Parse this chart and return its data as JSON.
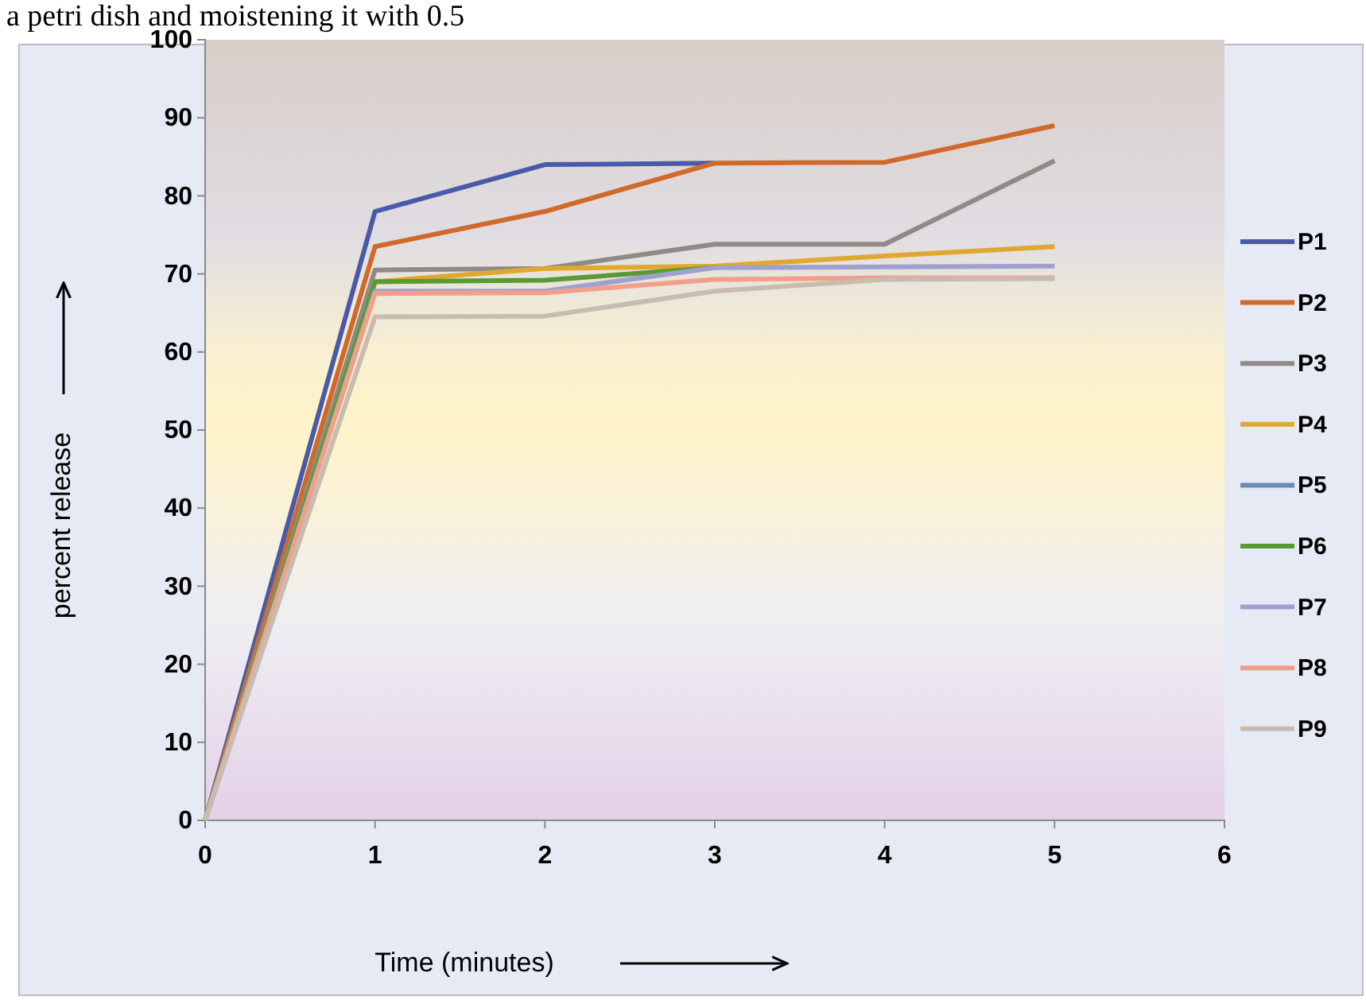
{
  "chart_data": {
    "type": "line",
    "xlabel": "Time (minutes)",
    "ylabel": "percent release",
    "annotations": [
      "a petri dish and moistening it with 0.5"
    ],
    "x": [
      0,
      1,
      2,
      3,
      4,
      5
    ],
    "xlim": [
      0,
      6
    ],
    "xticks": [
      0,
      1,
      2,
      3,
      4,
      5,
      6
    ],
    "ylim": [
      0,
      100
    ],
    "yticks": [
      0,
      10,
      20,
      30,
      40,
      50,
      60,
      70,
      80,
      90,
      100
    ],
    "grid": false,
    "legend": "right",
    "marker": "none",
    "line_style": "solid",
    "series": [
      {
        "name": "P1",
        "color": "#4a5aa8",
        "values": [
          0,
          78,
          84,
          84.2,
          null,
          null
        ]
      },
      {
        "name": "P2",
        "color": "#d0692a",
        "values": [
          0,
          73.5,
          78,
          84.2,
          84.3,
          89
        ]
      },
      {
        "name": "P3",
        "color": "#8f8a88",
        "values": [
          0,
          70.5,
          70.7,
          73.8,
          73.8,
          84.5
        ]
      },
      {
        "name": "P4",
        "color": "#e0a830",
        "values": [
          0,
          69,
          70.7,
          71,
          72.3,
          73.5
        ]
      },
      {
        "name": "P5",
        "color": "#6a8ab8",
        "values": [
          null,
          null,
          null,
          null,
          null,
          null
        ]
      },
      {
        "name": "P6",
        "color": "#5a9a32",
        "values": [
          0,
          69,
          69.2,
          70.8,
          null,
          null
        ]
      },
      {
        "name": "P7",
        "color": "#a0a0d0",
        "values": [
          0,
          67.8,
          67.8,
          70.8,
          70.9,
          71
        ]
      },
      {
        "name": "P8",
        "color": "#f0a08a",
        "values": [
          0,
          67.5,
          67.6,
          69.3,
          69.5,
          69.5
        ]
      },
      {
        "name": "P9",
        "color": "#c8bcb0",
        "values": [
          0,
          64.5,
          64.6,
          67.8,
          69.3,
          69.4
        ]
      }
    ]
  }
}
